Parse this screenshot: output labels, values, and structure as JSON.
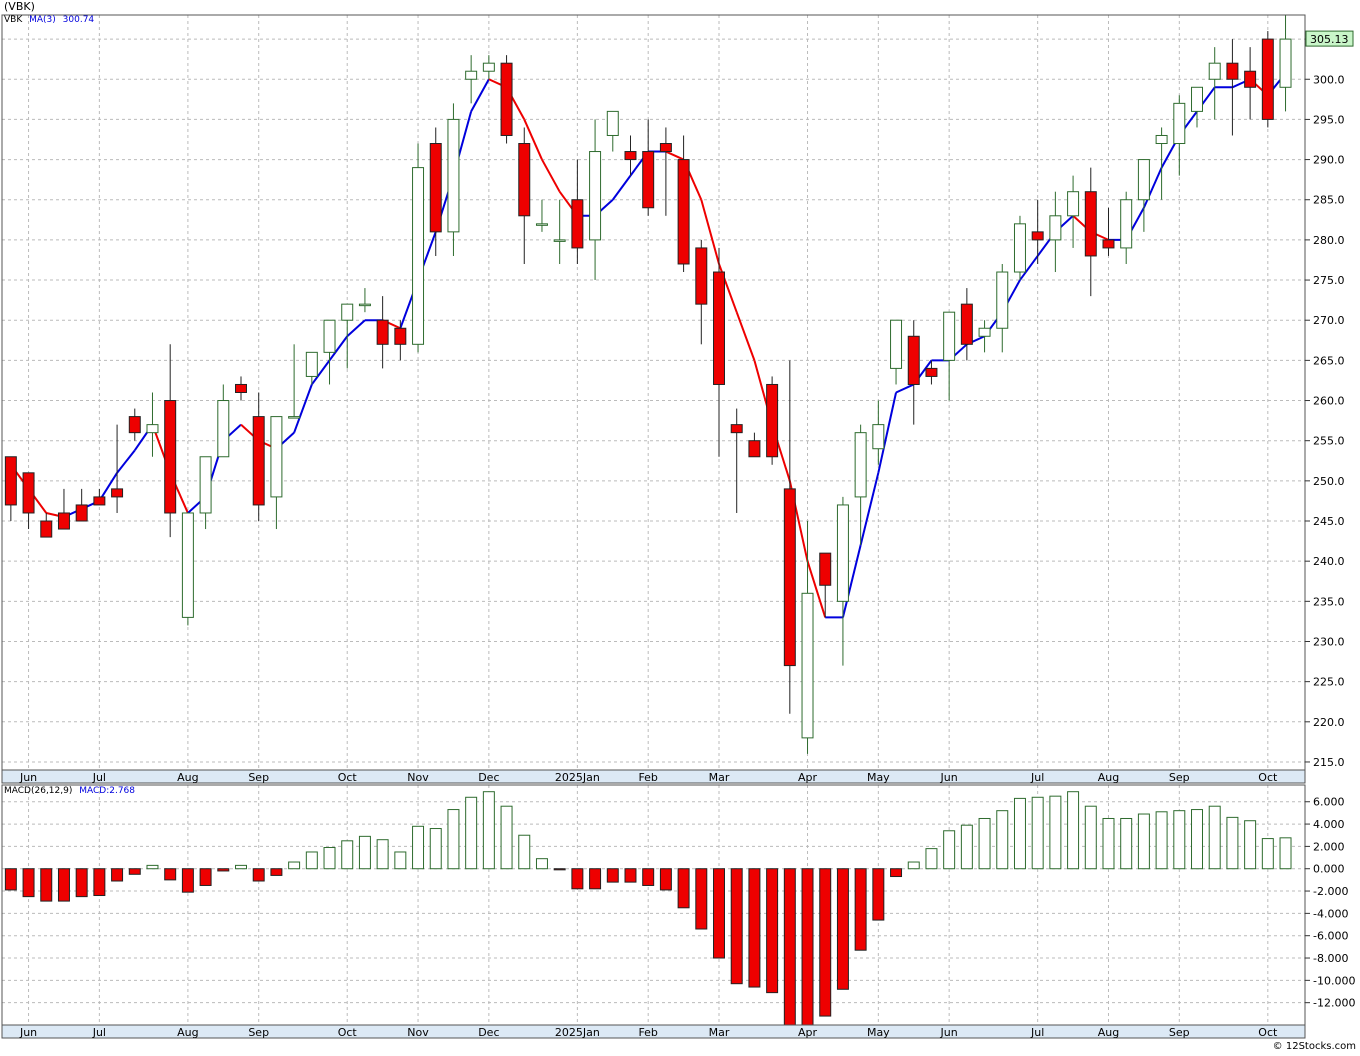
{
  "title": "(VBK)",
  "legend": {
    "symbol": "VBK",
    "ma_label": "MA(3)",
    "ma_value": "300.74"
  },
  "macd_legend": {
    "label": "MACD(26,12,9)",
    "value_label": "MACD:2.768"
  },
  "last_price_label": "305.13",
  "credit": "© 12Stocks.com",
  "colors": {
    "up": "#ffffff",
    "up_border": "#2e6b2e",
    "down": "#ee0000",
    "ma_up": "#0000dd",
    "ma_down": "#ee0000",
    "grid": "#bbbbbb",
    "axis_bg": "#dce9f5",
    "price_tag": "#c9f5c9"
  },
  "chart_data": {
    "type": "candlestick",
    "price_axis": {
      "ylim": [
        214,
        308
      ],
      "ticks": [
        215,
        220,
        225,
        230,
        235,
        240,
        245,
        250,
        255,
        260,
        265,
        270,
        275,
        280,
        285,
        290,
        295,
        300,
        305
      ]
    },
    "macd_axis": {
      "ylim": [
        -14,
        7.5
      ],
      "ticks": [
        6,
        4,
        2,
        0,
        -2,
        -4,
        -6,
        -8,
        -10,
        -12
      ],
      "tick_labels": [
        "6.000",
        "4.000",
        "2.000",
        "0.000",
        "-2.000",
        "-4.000",
        "-6.000",
        "-8.000",
        "-10.000",
        "-12.000"
      ]
    },
    "x_labels": [
      {
        "label": "Jun",
        "index": 1
      },
      {
        "label": "Jul",
        "index": 5
      },
      {
        "label": "Aug",
        "index": 10
      },
      {
        "label": "Sep",
        "index": 14
      },
      {
        "label": "Oct",
        "index": 19
      },
      {
        "label": "Nov",
        "index": 23
      },
      {
        "label": "Dec",
        "index": 27
      },
      {
        "label": "2025Jan",
        "index": 32
      },
      {
        "label": "Feb",
        "index": 36
      },
      {
        "label": "Mar",
        "index": 40
      },
      {
        "label": "Apr",
        "index": 45
      },
      {
        "label": "May",
        "index": 49
      },
      {
        "label": "Jun",
        "index": 53
      },
      {
        "label": "Jul",
        "index": 58
      },
      {
        "label": "Aug",
        "index": 62
      },
      {
        "label": "Sep",
        "index": 66
      },
      {
        "label": "Oct",
        "index": 71
      }
    ],
    "candles": [
      [
        253,
        253,
        247,
        245
      ],
      [
        251,
        251,
        246,
        244
      ],
      [
        245,
        246,
        243,
        243
      ],
      [
        246,
        249,
        244,
        244
      ],
      [
        247,
        249,
        245,
        246
      ],
      [
        248,
        249,
        247,
        247
      ],
      [
        249,
        257,
        248,
        246
      ],
      [
        258,
        259,
        256,
        255
      ],
      [
        256,
        261,
        257,
        253
      ],
      [
        260,
        267,
        246,
        243
      ],
      [
        233,
        246,
        246,
        232
      ],
      [
        246,
        253,
        253,
        244
      ],
      [
        253,
        262,
        260,
        253
      ],
      [
        262,
        263,
        261,
        260
      ],
      [
        258,
        261,
        247,
        245
      ],
      [
        248,
        258,
        258,
        244
      ],
      [
        258,
        267,
        258,
        258
      ],
      [
        263,
        265,
        266,
        262
      ],
      [
        266,
        267,
        270,
        262
      ],
      [
        270,
        271,
        272,
        264
      ],
      [
        272,
        274,
        272,
        271
      ],
      [
        270,
        273,
        267,
        264
      ],
      [
        269,
        270,
        267,
        265
      ],
      [
        267,
        292,
        289,
        266
      ],
      [
        292,
        294,
        281,
        278
      ],
      [
        281,
        297,
        295,
        278
      ],
      [
        300,
        303,
        301,
        297
      ],
      [
        301,
        303,
        302,
        300
      ],
      [
        302,
        303,
        293,
        292
      ],
      [
        292,
        294,
        283,
        277
      ],
      [
        282,
        285,
        282,
        281
      ],
      [
        280,
        285,
        280,
        277
      ],
      [
        285,
        290,
        279,
        277
      ],
      [
        280,
        295,
        291,
        275
      ],
      [
        293,
        296,
        296,
        291
      ],
      [
        291,
        293,
        290,
        288
      ],
      [
        291,
        295,
        284,
        283
      ],
      [
        292,
        294,
        291,
        283
      ],
      [
        290,
        293,
        277,
        276
      ],
      [
        279,
        280,
        272,
        267
      ],
      [
        276,
        279,
        262,
        253
      ],
      [
        257,
        259,
        256,
        246
      ],
      [
        255,
        256,
        253,
        253
      ],
      [
        262,
        263,
        253,
        252
      ],
      [
        249,
        265,
        227,
        221
      ],
      [
        218,
        245,
        236,
        216
      ],
      [
        241,
        241,
        237,
        233
      ],
      [
        235,
        248,
        247,
        227
      ],
      [
        248,
        257,
        256,
        242
      ],
      [
        254,
        260,
        257,
        252
      ],
      [
        264,
        269,
        270,
        262
      ],
      [
        268,
        270,
        262,
        257
      ],
      [
        264,
        265,
        263,
        262
      ],
      [
        265,
        271,
        271,
        260
      ],
      [
        272,
        274,
        267,
        265
      ],
      [
        268,
        270,
        269,
        266
      ],
      [
        269,
        277,
        276,
        266
      ],
      [
        276,
        283,
        282,
        275
      ],
      [
        281,
        285,
        280,
        277
      ],
      [
        280,
        286,
        283,
        276
      ],
      [
        283,
        288,
        286,
        279
      ],
      [
        286,
        289,
        278,
        273
      ],
      [
        280,
        284,
        279,
        278
      ],
      [
        279,
        286,
        285,
        277
      ],
      [
        285,
        290,
        290,
        281
      ],
      [
        292,
        294,
        293,
        285
      ],
      [
        292,
        298,
        297,
        288
      ],
      [
        296,
        299,
        299,
        294
      ],
      [
        300,
        304,
        302,
        295
      ],
      [
        302,
        305,
        300,
        293
      ],
      [
        301,
        304,
        299,
        295
      ],
      [
        305,
        306,
        295,
        294
      ],
      [
        299,
        308,
        305,
        296
      ]
    ],
    "ma": [
      252,
      249,
      246,
      245.5,
      246.5,
      247.5,
      251,
      253.8,
      257,
      251,
      246,
      248,
      255,
      257,
      255,
      254,
      256,
      262,
      265,
      268,
      270,
      270,
      269,
      275,
      281,
      288,
      296,
      300,
      299,
      295,
      290,
      286,
      283,
      283,
      285,
      288,
      291,
      291,
      290,
      285,
      277,
      271,
      265,
      257,
      250,
      240,
      233,
      233,
      242,
      251,
      261,
      262,
      265,
      265,
      267,
      268,
      271,
      275,
      278,
      281,
      283,
      281,
      280,
      280,
      284,
      289,
      293,
      296,
      299,
      299,
      300,
      298,
      300.74
    ],
    "macd_values": [
      -1.9,
      -2.5,
      -2.9,
      -2.9,
      -2.5,
      -2.4,
      -1.1,
      -0.5,
      0.3,
      -1.0,
      -2.1,
      -1.5,
      -0.2,
      0.3,
      -1.1,
      -0.6,
      0.6,
      1.5,
      1.9,
      2.5,
      2.9,
      2.6,
      1.5,
      3.8,
      3.6,
      5.3,
      6.4,
      6.9,
      5.6,
      3.0,
      0.9,
      -0.1,
      -1.8,
      -1.8,
      -1.2,
      -1.2,
      -1.5,
      -1.9,
      -3.5,
      -5.4,
      -8.0,
      -10.3,
      -10.6,
      -11.1,
      -14.0,
      -14.0,
      -13.2,
      -10.8,
      -7.3,
      -4.6,
      -0.7,
      0.6,
      1.8,
      3.4,
      3.9,
      4.5,
      5.2,
      6.3,
      6.4,
      6.5,
      6.9,
      5.6,
      4.5,
      4.5,
      4.9,
      5.1,
      5.2,
      5.3,
      5.6,
      4.6,
      4.3,
      2.7,
      2.768
    ]
  }
}
